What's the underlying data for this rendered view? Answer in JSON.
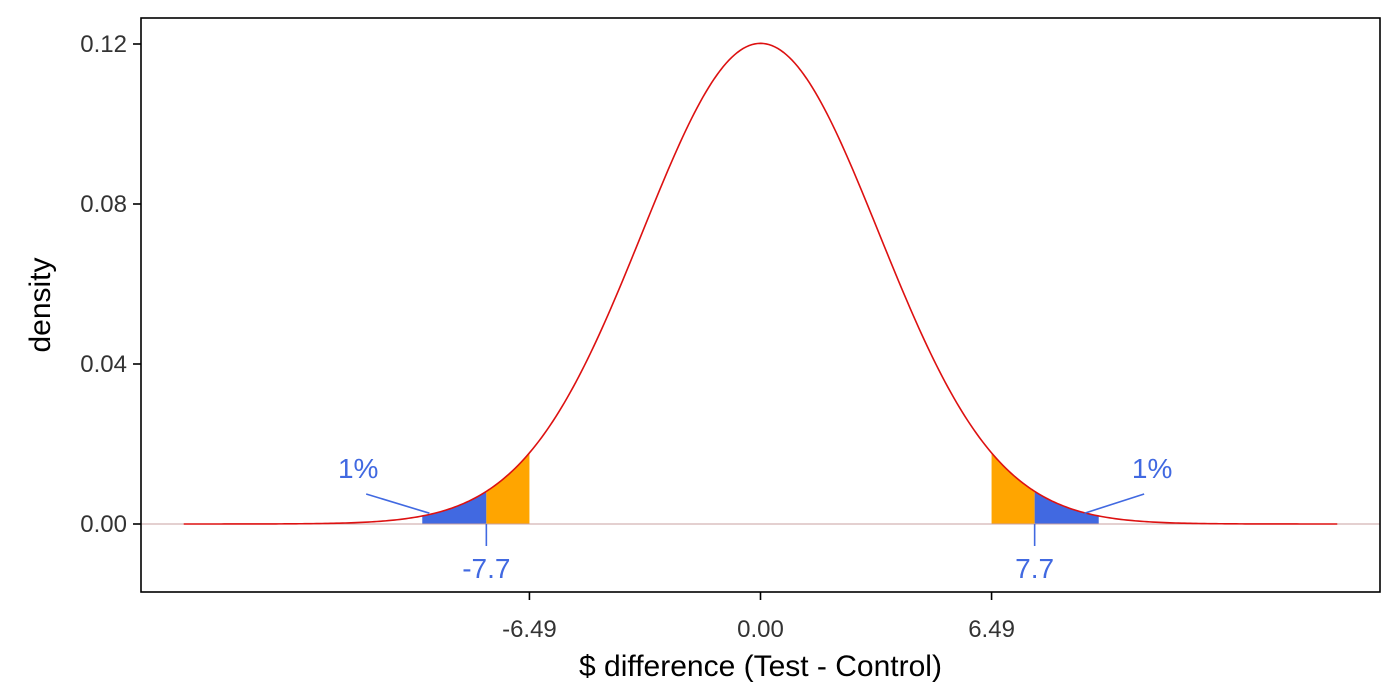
{
  "chart_data": {
    "type": "area",
    "title": "",
    "xlabel": "$ difference (Test - Control)",
    "ylabel": "density",
    "distribution": {
      "name": "normal",
      "mean": 0,
      "sd": 3.32,
      "x_range": [
        -16.2,
        16.2
      ]
    },
    "xlim": [
      -17.4,
      17.4
    ],
    "ylim": [
      -0.017,
      0.1265
    ],
    "x_ticks": [
      {
        "value": -6.49,
        "label": "-6.49"
      },
      {
        "value": 0,
        "label": "0.00"
      },
      {
        "value": 6.49,
        "label": "6.49"
      }
    ],
    "y_ticks": [
      {
        "value": 0,
        "label": "0.00"
      },
      {
        "value": 0.04,
        "label": "0.04"
      },
      {
        "value": 0.08,
        "label": "0.08"
      },
      {
        "value": 0.12,
        "label": "0.12"
      }
    ],
    "shaded_regions": [
      {
        "name": "lower-tail",
        "from": -9.5,
        "to": -7.7,
        "color": "#4169E1"
      },
      {
        "name": "lower-critical",
        "from": -7.7,
        "to": -6.49,
        "color": "#FFA500"
      },
      {
        "name": "upper-critical",
        "from": 6.49,
        "to": 7.7,
        "color": "#FFA500"
      },
      {
        "name": "upper-tail",
        "from": 7.7,
        "to": 9.5,
        "color": "#4169E1"
      }
    ],
    "annotations": [
      {
        "name": "lower-tail-percent",
        "text": "1%",
        "text_x": -11.3,
        "text_y": 0.0115,
        "point_x": -9.3,
        "point_y": 0.0027
      },
      {
        "name": "upper-tail-percent",
        "text": "1%",
        "text_x": 11.0,
        "text_y": 0.0115,
        "point_x": 9.1,
        "point_y": 0.0027
      },
      {
        "name": "lower-cutoff",
        "text": "-7.7",
        "x": -7.7
      },
      {
        "name": "upper-cutoff",
        "text": "7.7",
        "x": 7.7
      }
    ],
    "grid": false,
    "legend": "none",
    "colors": {
      "curve": "#DD1111",
      "baseline": "#C8A0A0",
      "annotation": "#4169E1",
      "axis": "#000000",
      "tick_text": "#333333"
    }
  }
}
